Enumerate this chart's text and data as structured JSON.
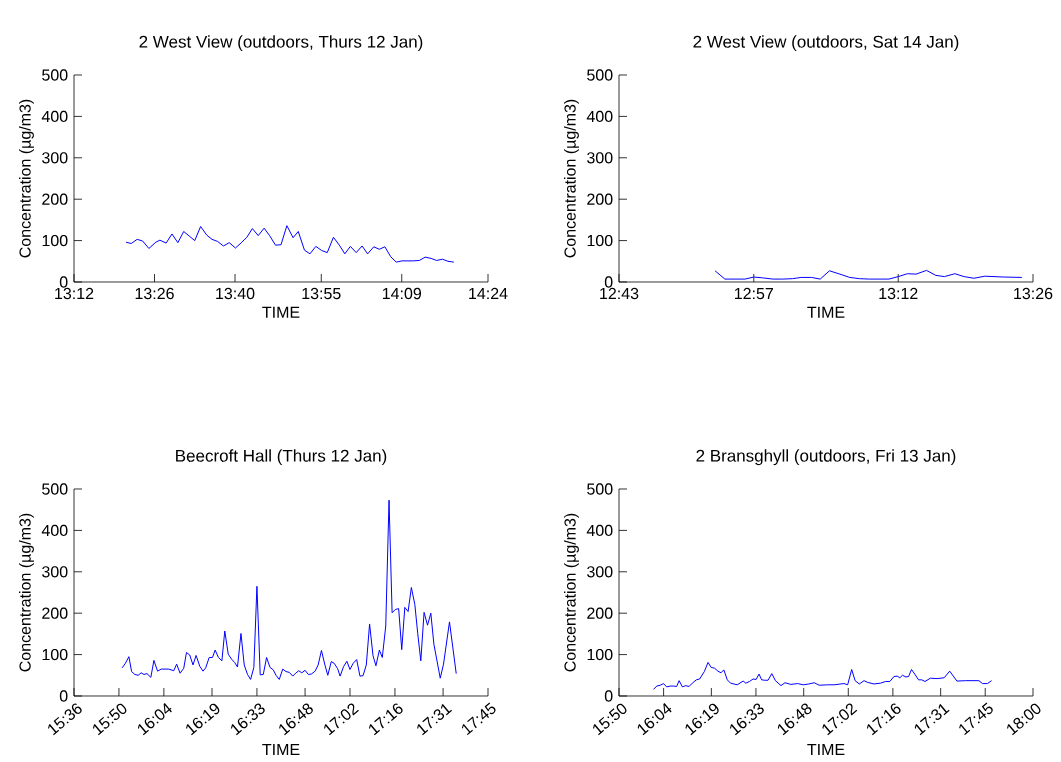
{
  "chart_data": [
    {
      "type": "line",
      "title": "2 West View (outdoors, Thurs 12 Jan)",
      "xlabel": "TIME",
      "ylabel": "Concentration (µg/m3)",
      "color": "#0000ff",
      "xlim": [
        13.2,
        14.4
      ],
      "xticks": [
        {
          "value": 13.2,
          "label": "13:12"
        },
        {
          "value": 13.4333,
          "label": "13:26"
        },
        {
          "value": 13.6667,
          "label": "13:40"
        },
        {
          "value": 13.9167,
          "label": "13:55"
        },
        {
          "value": 14.15,
          "label": "14:09"
        },
        {
          "value": 14.4,
          "label": "14:24"
        }
      ],
      "ylim": [
        0,
        500
      ],
      "yticks": [
        0,
        100,
        200,
        300,
        400,
        500
      ],
      "x": [
        13.351,
        13.366,
        13.383,
        13.399,
        13.417,
        13.437,
        13.449,
        13.467,
        13.484,
        13.501,
        13.518,
        13.534,
        13.55,
        13.567,
        13.585,
        13.6,
        13.616,
        13.633,
        13.65,
        13.668,
        13.685,
        13.701,
        13.717,
        13.734,
        13.751,
        13.767,
        13.784,
        13.8,
        13.817,
        13.835,
        13.85,
        13.868,
        13.884,
        13.901,
        13.918,
        13.934,
        13.952,
        13.969,
        13.985,
        14.001,
        14.018,
        14.035,
        14.051,
        14.069,
        14.085,
        14.101,
        14.118,
        14.134,
        14.151,
        14.184,
        14.201,
        14.218,
        14.235,
        14.251,
        14.268,
        14.284,
        14.301
      ],
      "values": [
        96,
        93,
        103,
        99,
        81,
        96,
        101,
        94,
        116,
        95,
        122,
        111,
        100,
        134,
        113,
        103,
        98,
        87,
        95,
        82,
        95,
        108,
        129,
        112,
        130,
        112,
        89,
        90,
        136,
        107,
        122,
        77,
        68,
        86,
        76,
        71,
        108,
        89,
        68,
        86,
        71,
        87,
        68,
        85,
        79,
        85,
        61,
        48,
        51,
        51,
        52,
        60,
        57,
        52,
        55,
        50,
        48
      ]
    },
    {
      "type": "line",
      "title": "2 West View (outdoors, Sat 14 Jan)",
      "xlabel": "TIME",
      "ylabel": "Concentration (µg/m3)",
      "color": "#0000ff",
      "xlim": [
        12.7167,
        13.4333
      ],
      "xticks": [
        {
          "value": 12.7167,
          "label": "12:43"
        },
        {
          "value": 12.95,
          "label": "12:57"
        },
        {
          "value": 13.2,
          "label": "13:12"
        },
        {
          "value": 13.4333,
          "label": "13:26"
        }
      ],
      "ylim": [
        0,
        500
      ],
      "yticks": [
        0,
        100,
        200,
        300,
        400,
        500
      ],
      "x": [
        12.883,
        12.9,
        12.916,
        12.935,
        12.95,
        12.965,
        12.983,
        13.0,
        13.017,
        13.032,
        13.05,
        13.065,
        13.081,
        13.099,
        13.116,
        13.133,
        13.15,
        13.168,
        13.184,
        13.2,
        13.216,
        13.231,
        13.249,
        13.265,
        13.28,
        13.298,
        13.314,
        13.331,
        13.35,
        13.382,
        13.414
      ],
      "values": [
        27,
        7,
        7,
        7,
        12,
        10,
        7,
        7,
        8,
        11,
        11,
        7,
        27,
        19,
        11,
        8,
        7,
        7,
        7,
        13,
        20,
        19,
        28,
        16,
        13,
        20,
        13,
        9,
        14,
        12,
        11
      ]
    },
    {
      "type": "line",
      "title": "Beecroft Hall (Thurs 12 Jan)",
      "xlabel": "TIME",
      "ylabel": "Concentration (µg/m3)",
      "color": "#0000ff",
      "xlim": [
        15.6,
        17.75
      ],
      "xticks": [
        {
          "value": 15.6,
          "label": "15:36"
        },
        {
          "value": 15.8333,
          "label": "15:50"
        },
        {
          "value": 16.0667,
          "label": "16:04"
        },
        {
          "value": 16.3167,
          "label": "16:19"
        },
        {
          "value": 16.55,
          "label": "16:33"
        },
        {
          "value": 16.8,
          "label": "16:48"
        },
        {
          "value": 17.0333,
          "label": "17:02"
        },
        {
          "value": 17.2667,
          "label": "17:16"
        },
        {
          "value": 17.5167,
          "label": "17:31"
        },
        {
          "value": 17.75,
          "label": "17:45"
        }
      ],
      "ylim": [
        0,
        500
      ],
      "yticks": [
        0,
        100,
        200,
        300,
        400,
        500
      ],
      "x": [
        15.85,
        15.867,
        15.885,
        15.899,
        15.916,
        15.933,
        15.949,
        15.963,
        15.979,
        15.999,
        16.015,
        16.034,
        16.053,
        16.092,
        16.118,
        16.133,
        16.151,
        16.17,
        16.184,
        16.201,
        16.218,
        16.234,
        16.253,
        16.27,
        16.284,
        16.302,
        16.319,
        16.333,
        16.35,
        16.368,
        16.383,
        16.401,
        16.418,
        16.434,
        16.449,
        16.467,
        16.484,
        16.501,
        16.517,
        16.534,
        16.55,
        16.567,
        16.583,
        16.6,
        16.618,
        16.635,
        16.649,
        16.666,
        16.684,
        16.701,
        16.718,
        16.736,
        16.751,
        16.767,
        16.783,
        16.8,
        16.817,
        16.833,
        16.852,
        16.868,
        16.885,
        16.903,
        16.918,
        16.936,
        16.951,
        16.969,
        16.982,
        17.0,
        17.017,
        17.033,
        17.05,
        17.068,
        17.085,
        17.101,
        17.118,
        17.135,
        17.153,
        17.168,
        17.186,
        17.201,
        17.219,
        17.236,
        17.252,
        17.269,
        17.286,
        17.302,
        17.318,
        17.335,
        17.352,
        17.37,
        17.385,
        17.401,
        17.418,
        17.436,
        17.453,
        17.469,
        17.502,
        17.519,
        17.55,
        17.585
      ],
      "values": [
        68,
        79,
        95,
        59,
        52,
        50,
        56,
        52,
        54,
        45,
        86,
        60,
        65,
        65,
        61,
        77,
        55,
        67,
        105,
        99,
        75,
        98,
        72,
        60,
        68,
        93,
        93,
        111,
        93,
        85,
        157,
        101,
        89,
        81,
        70,
        151,
        75,
        52,
        40,
        69,
        265,
        51,
        52,
        93,
        69,
        63,
        50,
        40,
        65,
        59,
        57,
        48,
        55,
        61,
        56,
        62,
        52,
        53,
        60,
        75,
        110,
        75,
        50,
        83,
        79,
        66,
        48,
        71,
        84,
        64,
        79,
        88,
        48,
        49,
        75,
        174,
        97,
        73,
        111,
        93,
        169,
        473,
        201,
        209,
        211,
        112,
        214,
        204,
        262,
        221,
        151,
        85,
        202,
        171,
        200,
        125,
        43,
        77,
        179,
        54
      ]
    },
    {
      "type": "line",
      "title": "2 Bransghyll (outdoors, Fri 13 Jan)",
      "xlabel": "TIME",
      "ylabel": "Concentration (µg/m3)",
      "color": "#0000ff",
      "xlim": [
        15.8333,
        18.0
      ],
      "xticks": [
        {
          "value": 15.8333,
          "label": "15:50"
        },
        {
          "value": 16.0667,
          "label": "16:04"
        },
        {
          "value": 16.3167,
          "label": "16:19"
        },
        {
          "value": 16.55,
          "label": "16:33"
        },
        {
          "value": 16.8,
          "label": "16:48"
        },
        {
          "value": 17.0333,
          "label": "17:02"
        },
        {
          "value": 17.2667,
          "label": "17:16"
        },
        {
          "value": 17.5167,
          "label": "17:31"
        },
        {
          "value": 17.75,
          "label": "17:45"
        },
        {
          "value": 18.0,
          "label": "18:00"
        }
      ],
      "ylim": [
        0,
        500
      ],
      "yticks": [
        0,
        100,
        200,
        300,
        400,
        500
      ],
      "x": [
        16.014,
        16.031,
        16.049,
        16.066,
        16.083,
        16.102,
        16.118,
        16.135,
        16.148,
        16.165,
        16.182,
        16.2,
        16.217,
        16.238,
        16.255,
        16.28,
        16.299,
        16.316,
        16.334,
        16.351,
        16.367,
        16.382,
        16.4,
        16.417,
        16.452,
        16.483,
        16.497,
        16.516,
        16.535,
        16.551,
        16.566,
        16.58,
        16.596,
        16.613,
        16.633,
        16.652,
        16.681,
        16.702,
        16.733,
        16.768,
        16.798,
        16.827,
        16.855,
        16.881,
        16.924,
        16.959,
        17.011,
        17.03,
        17.051,
        17.069,
        17.091,
        17.116,
        17.133,
        17.168,
        17.202,
        17.229,
        17.251,
        17.272,
        17.289,
        17.303,
        17.317,
        17.335,
        17.349,
        17.364,
        17.381,
        17.401,
        17.418,
        17.435,
        17.463,
        17.498,
        17.535,
        17.564,
        17.602,
        17.647,
        17.717,
        17.736,
        17.762,
        17.783
      ],
      "values": [
        16,
        24,
        26,
        30,
        22,
        24,
        24,
        23,
        37,
        22,
        25,
        23,
        31,
        39,
        41,
        59,
        81,
        69,
        67,
        60,
        56,
        63,
        39,
        31,
        27,
        36,
        31,
        35,
        41,
        40,
        53,
        39,
        38,
        38,
        54,
        37,
        25,
        32,
        28,
        30,
        27,
        29,
        32,
        26,
        27,
        27,
        30,
        27,
        64,
        37,
        29,
        37,
        33,
        29,
        31,
        35,
        35,
        47,
        48,
        44,
        50,
        46,
        47,
        64,
        53,
        39,
        39,
        35,
        43,
        42,
        44,
        60,
        36,
        37,
        37,
        30,
        30,
        37
      ]
    }
  ]
}
